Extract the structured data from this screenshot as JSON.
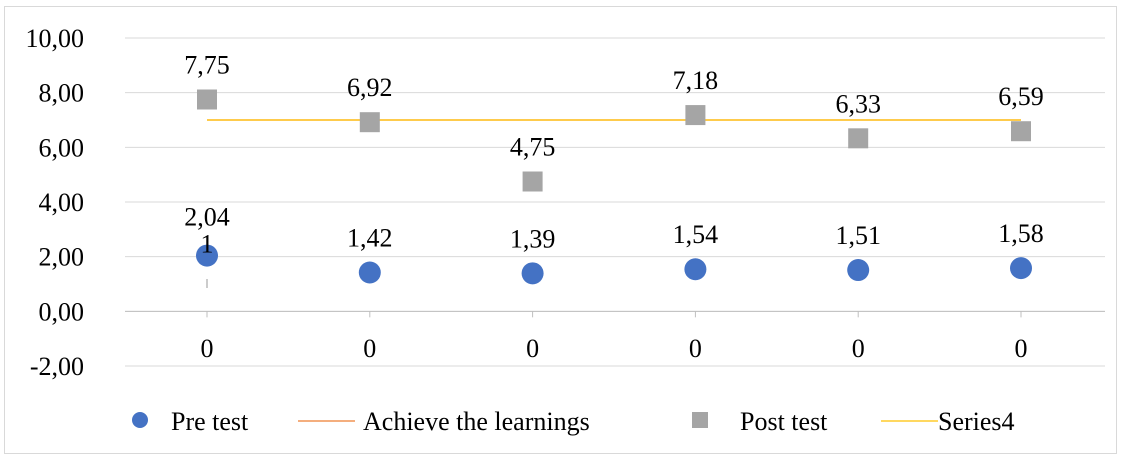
{
  "chart_data": {
    "type": "scatter",
    "categories": [
      "0",
      "0",
      "0",
      "0",
      "0",
      "0"
    ],
    "ylim": [
      -2,
      10
    ],
    "yticks": [
      "-2,00",
      "0,00",
      "2,00",
      "4,00",
      "6,00",
      "8,00",
      "10,00"
    ],
    "ytick_values": [
      -2,
      0,
      2,
      4,
      6,
      8,
      10
    ],
    "grid": true,
    "legend_position": "bottom",
    "series": [
      {
        "name": "Pre test",
        "marker": "circle",
        "color": "#4472c4",
        "values": [
          2.04,
          1.42,
          1.39,
          1.54,
          1.51,
          1.58
        ],
        "labels": [
          "2,04\n1",
          "1,42",
          "1,39",
          "1,54",
          "1,51",
          "1,58"
        ]
      },
      {
        "name": "Achieve the learnings",
        "marker": "line",
        "color": "#ed7d31",
        "values": [
          7,
          7,
          7,
          7,
          7,
          7
        ]
      },
      {
        "name": "Post test",
        "marker": "square",
        "color": "#a5a5a5",
        "values": [
          7.75,
          6.92,
          4.75,
          7.18,
          6.33,
          6.59
        ],
        "labels": [
          "7,75",
          "6,92",
          "4,75",
          "7,18",
          "6,33",
          "6,59"
        ]
      },
      {
        "name": "Series4",
        "marker": "line",
        "color": "#ffc000",
        "values": [
          7,
          7,
          7,
          7,
          7,
          7
        ]
      }
    ]
  }
}
